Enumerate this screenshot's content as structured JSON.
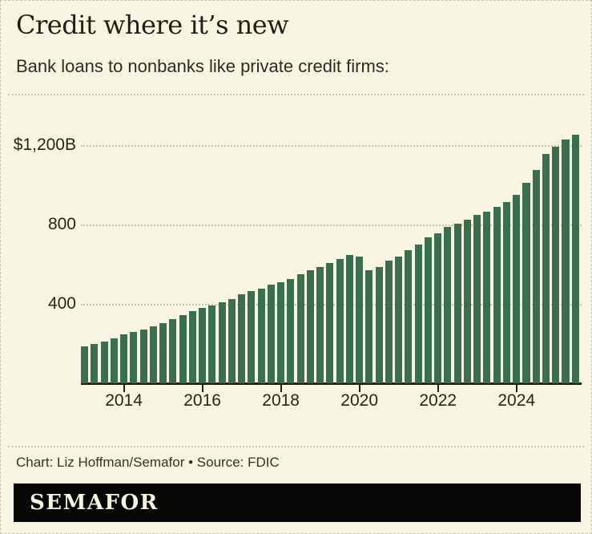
{
  "header": {
    "title": "Credit where it’s new",
    "subtitle": "Bank loans to nonbanks like private credit firms:"
  },
  "footer": {
    "credit": "Chart: Liz Hoffman/Semafor • Source: FDIC",
    "logo": "SEMAFOR"
  },
  "colors": {
    "background": "#f8f6e2",
    "bar_green": "#3a6e4e",
    "axis_text": "#262519",
    "gridline": "#c6c3ad",
    "logo_bar_background": "#070706",
    "logo_text": "#f6f3df"
  },
  "chart_data": {
    "type": "bar",
    "title": "Credit where it’s new",
    "subtitle": "Bank loans to nonbanks like private credit firms:",
    "unit": "USD billions",
    "grid": "horizontal dotted",
    "legend": "none",
    "ylim": [
      0,
      1285
    ],
    "categories": [
      "2013 Q1",
      "2013 Q2",
      "2013 Q3",
      "2013 Q4",
      "2014 Q1",
      "2014 Q2",
      "2014 Q3",
      "2014 Q4",
      "2015 Q1",
      "2015 Q2",
      "2015 Q3",
      "2015 Q4",
      "2016 Q1",
      "2016 Q2",
      "2016 Q3",
      "2016 Q4",
      "2017 Q1",
      "2017 Q2",
      "2017 Q3",
      "2017 Q4",
      "2018 Q1",
      "2018 Q2",
      "2018 Q3",
      "2018 Q4",
      "2019 Q1",
      "2019 Q2",
      "2019 Q3",
      "2019 Q4",
      "2020 Q1",
      "2020 Q2",
      "2020 Q3",
      "2020 Q4",
      "2021 Q1",
      "2021 Q2",
      "2021 Q3",
      "2021 Q4",
      "2022 Q1",
      "2022 Q2",
      "2022 Q3",
      "2022 Q4",
      "2023 Q1",
      "2023 Q2",
      "2023 Q3",
      "2023 Q4",
      "2024 Q1",
      "2024 Q2",
      "2024 Q3",
      "2024 Q4",
      "2025 Q1",
      "2025 Q2",
      "2025 Q3"
    ],
    "values": [
      185,
      198,
      212,
      228,
      248,
      260,
      272,
      285,
      305,
      322,
      345,
      362,
      378,
      392,
      408,
      426,
      448,
      464,
      478,
      497,
      510,
      527,
      549,
      570,
      586,
      608,
      625,
      646,
      637,
      568,
      587,
      618,
      637,
      671,
      700,
      734,
      757,
      787,
      805,
      826,
      849,
      866,
      889,
      913,
      951,
      1010,
      1076,
      1156,
      1191,
      1228,
      1251
    ],
    "y_ticks": [
      {
        "value": 400,
        "label": "400"
      },
      {
        "value": 800,
        "label": "800"
      },
      {
        "value": 1200,
        "label": "$1,200B"
      }
    ],
    "x_ticks": [
      {
        "label": "2014",
        "index": 4
      },
      {
        "label": "2016",
        "index": 12
      },
      {
        "label": "2018",
        "index": 20
      },
      {
        "label": "2020",
        "index": 28
      },
      {
        "label": "2022",
        "index": 36
      },
      {
        "label": "2024",
        "index": 44
      }
    ]
  }
}
